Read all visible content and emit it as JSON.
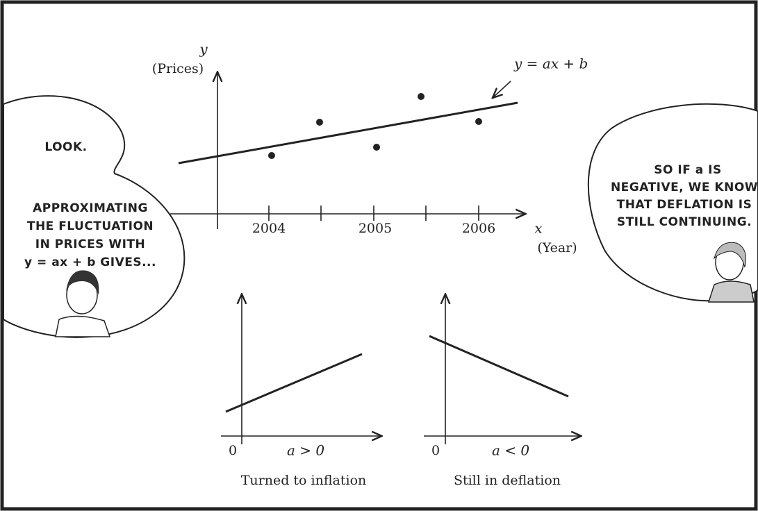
{
  "main_graph": {
    "y_label": "y",
    "y_unit": "(Prices)",
    "equation": "y = ax + b",
    "x_ticks": [
      "2004",
      "2005",
      "2006"
    ],
    "x_label": "x",
    "x_unit": "(Year)"
  },
  "left_bubble": {
    "lines": [
      "LOOK.",
      "APPROXIMATING",
      "THE FLUCTUATION",
      "IN PRICES WITH",
      "y = ax + b GIVES..."
    ]
  },
  "right_bubble": {
    "lines": [
      "SO IF a IS",
      "NEGATIVE, WE KNOW",
      "THAT DEFLATION IS",
      "STILL CONTINUING."
    ]
  },
  "small_graphs": [
    {
      "origin": "0",
      "condition": "a > 0",
      "caption": "Turned to inflation"
    },
    {
      "origin": "0",
      "condition": "a < 0",
      "caption": "Still in deflation"
    }
  ]
}
